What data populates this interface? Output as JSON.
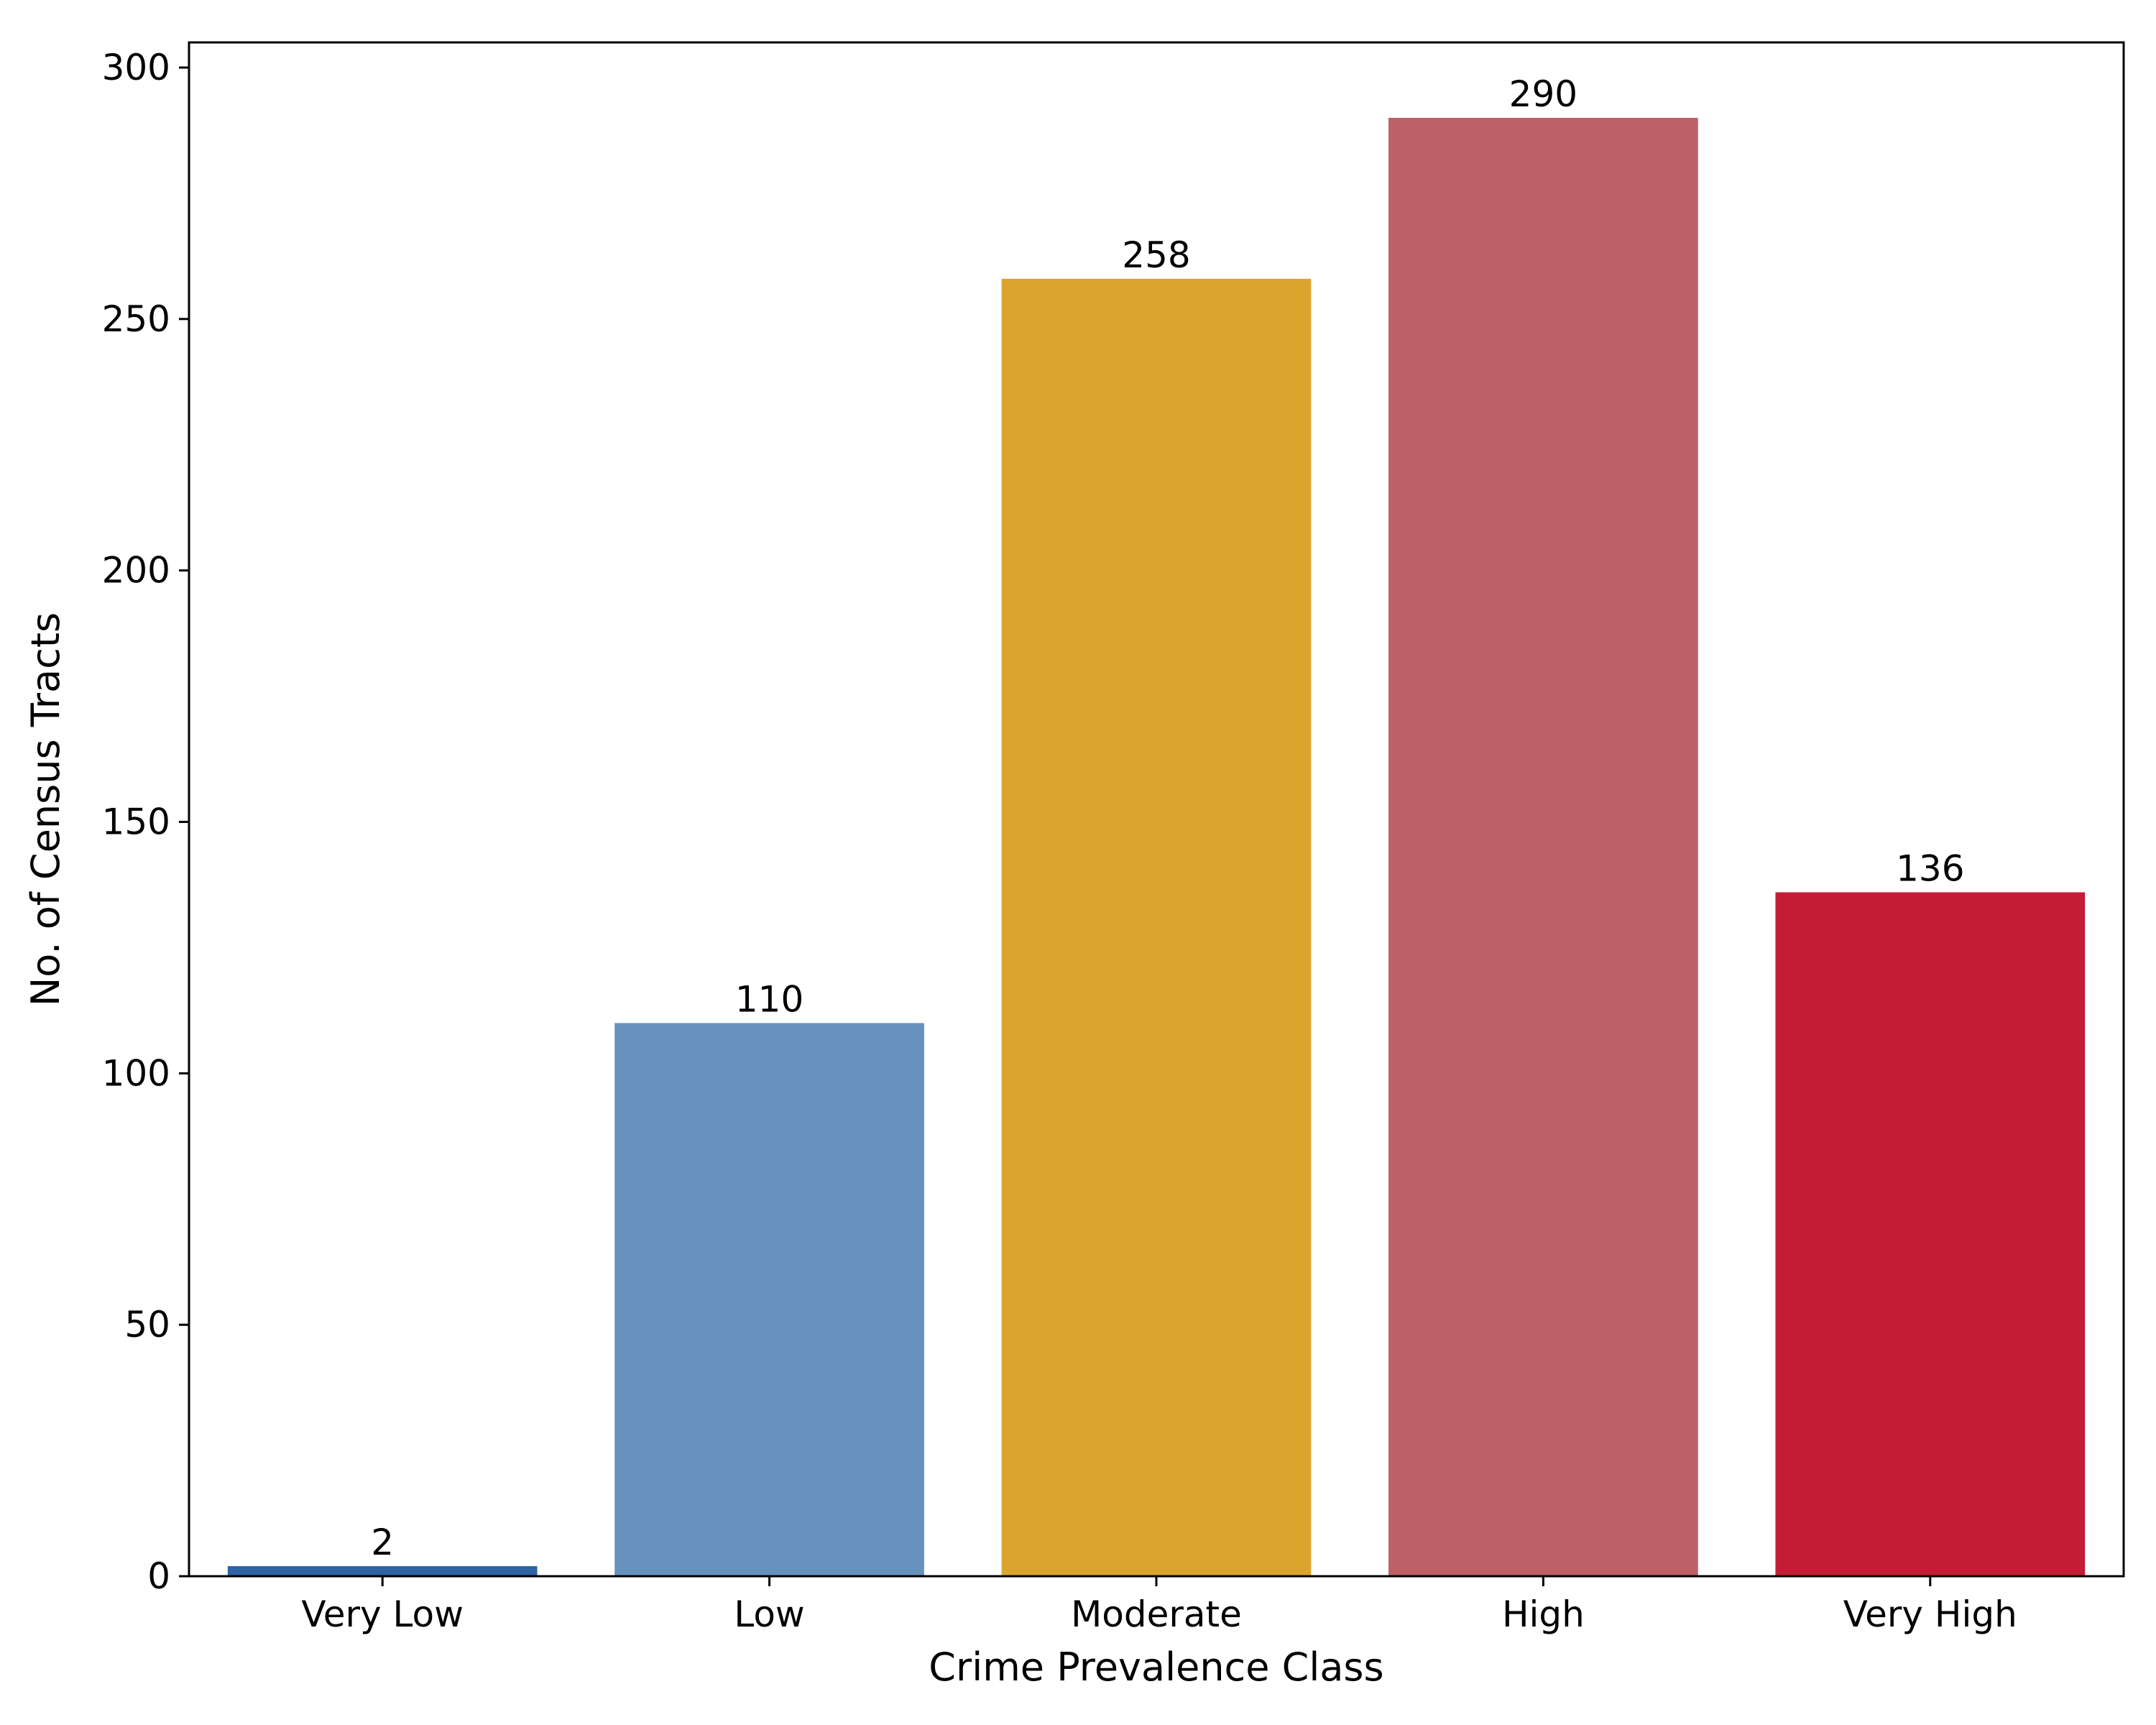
{
  "chart_data": {
    "type": "bar",
    "categories": [
      "Very Low",
      "Low",
      "Moderate",
      "High",
      "Very High"
    ],
    "values": [
      2,
      110,
      258,
      290,
      136
    ],
    "data_labels": [
      "2",
      "110",
      "258",
      "290",
      "136"
    ],
    "colors": [
      "#2f63a3",
      "#6692bd",
      "#dba42f",
      "#bd6166",
      "#c41c37"
    ],
    "xlabel": "Crime Prevalence Class",
    "ylabel": "No. of Census Tracts",
    "ylim": [
      0,
      305
    ],
    "yticks": [
      0,
      50,
      100,
      150,
      200,
      250,
      300
    ],
    "ytick_labels": [
      "0",
      "50",
      "100",
      "150",
      "200",
      "250",
      "300"
    ],
    "grid": false,
    "legend": false
  }
}
